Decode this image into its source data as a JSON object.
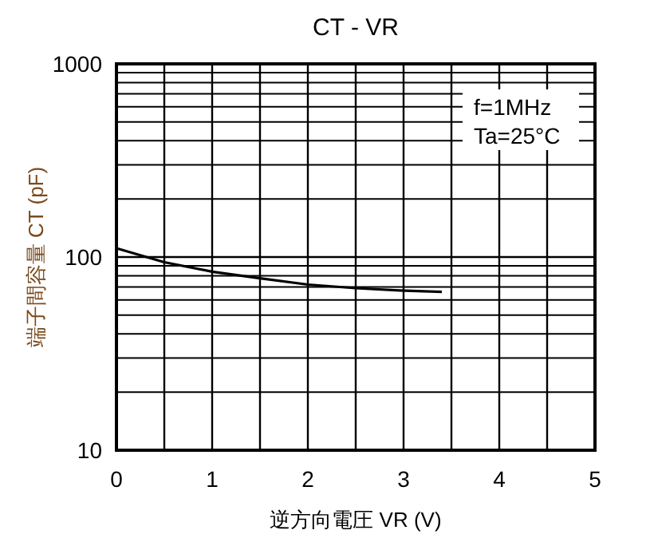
{
  "chart_data": {
    "type": "line",
    "title": "CT - VR",
    "xlabel": "逆方向電圧  VR (V)",
    "ylabel": "端子間容量  CT (pF)",
    "x": [
      0,
      0.5,
      1,
      1.5,
      2,
      2.5,
      3,
      3.4
    ],
    "series": [
      {
        "color": "#000000",
        "values": [
          111,
          94,
          84,
          77.6,
          72,
          69,
          67,
          66
        ]
      }
    ],
    "xlim": [
      0,
      5
    ],
    "xticks": [
      0,
      {
        "value": 0.5,
        "label": null
      },
      1,
      {
        "value": 1.5,
        "label": null
      },
      2,
      {
        "value": 2.5,
        "label": null
      },
      3,
      {
        "value": 3.5,
        "label": null
      },
      4,
      {
        "value": 4.5,
        "label": null
      },
      5
    ],
    "ylim": [
      10,
      1000
    ],
    "yticks": [
      10,
      100,
      1000
    ],
    "log": "y",
    "grid": true,
    "annotations": [
      "f=1MHz",
      "Ta=25°C"
    ]
  }
}
